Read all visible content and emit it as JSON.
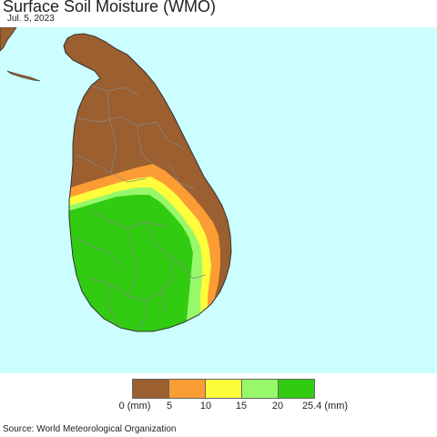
{
  "title": "Surface Soil Moisture (WMO)",
  "date": "Jul. 5, 2023",
  "source": "Source: World Meteorological Organization",
  "colors": {
    "ocean": "#ccfeff",
    "land_outline": "#333333",
    "district_lines": "#888888"
  },
  "legend": {
    "swatches": [
      {
        "range": "0-5",
        "color": "#9b5f30"
      },
      {
        "range": "5-10",
        "color": "#fc9c34"
      },
      {
        "range": "10-15",
        "color": "#fdfd3c"
      },
      {
        "range": "15-20",
        "color": "#97f96a"
      },
      {
        "range": "20-25.4",
        "color": "#31cb12"
      }
    ],
    "labels": [
      "0 (mm)",
      "5",
      "10",
      "15",
      "20",
      "25.4 (mm)"
    ]
  }
}
